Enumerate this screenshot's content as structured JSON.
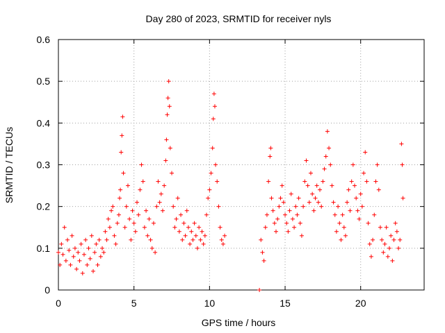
{
  "chart_data": {
    "type": "scatter",
    "title": "Day 280 of 2023, SRMTID for receiver nyls",
    "xlabel": "GPS time / hours",
    "ylabel": "SRMTID / TECUs",
    "xlim": [
      0,
      24.2
    ],
    "ylim": [
      0,
      0.6
    ],
    "xticks": [
      0,
      5,
      10,
      15,
      20
    ],
    "yticks": [
      0,
      0.1,
      0.2,
      0.3,
      0.4,
      0.5,
      0.6
    ],
    "xtick_labels": [
      "0",
      "5",
      "10",
      "15",
      "20"
    ],
    "ytick_labels": [
      "0",
      "0.1",
      "0.2",
      "0.3",
      "0.4",
      "0.5",
      "0.6"
    ],
    "grid": true,
    "marker": "+",
    "color": "#ff0000",
    "series": [
      {
        "name": "SRMTID",
        "points": [
          [
            0.0,
            0.09
          ],
          [
            0.1,
            0.06
          ],
          [
            0.2,
            0.11
          ],
          [
            0.3,
            0.085
          ],
          [
            0.4,
            0.15
          ],
          [
            0.5,
            0.07
          ],
          [
            0.6,
            0.12
          ],
          [
            0.7,
            0.095
          ],
          [
            0.8,
            0.06
          ],
          [
            0.9,
            0.13
          ],
          [
            1.0,
            0.08
          ],
          [
            1.1,
            0.1
          ],
          [
            1.2,
            0.05
          ],
          [
            1.3,
            0.09
          ],
          [
            1.4,
            0.07
          ],
          [
            1.5,
            0.11
          ],
          [
            1.6,
            0.04
          ],
          [
            1.7,
            0.085
          ],
          [
            1.8,
            0.12
          ],
          [
            1.9,
            0.06
          ],
          [
            2.0,
            0.1
          ],
          [
            2.1,
            0.075
          ],
          [
            2.2,
            0.13
          ],
          [
            2.3,
            0.045
          ],
          [
            2.4,
            0.09
          ],
          [
            2.5,
            0.11
          ],
          [
            2.6,
            0.06
          ],
          [
            2.7,
            0.12
          ],
          [
            2.8,
            0.08
          ],
          [
            2.9,
            0.1
          ],
          [
            3.0,
            0.09
          ],
          [
            3.1,
            0.14
          ],
          [
            3.2,
            0.12
          ],
          [
            3.3,
            0.17
          ],
          [
            3.4,
            0.15
          ],
          [
            3.5,
            0.19
          ],
          [
            3.6,
            0.2
          ],
          [
            3.7,
            0.13
          ],
          [
            3.8,
            0.11
          ],
          [
            3.9,
            0.16
          ],
          [
            4.0,
            0.18
          ],
          [
            4.05,
            0.22
          ],
          [
            4.1,
            0.24
          ],
          [
            4.15,
            0.33
          ],
          [
            4.2,
            0.37
          ],
          [
            4.25,
            0.415
          ],
          [
            4.3,
            0.28
          ],
          [
            4.4,
            0.15
          ],
          [
            4.5,
            0.2
          ],
          [
            4.6,
            0.25
          ],
          [
            4.7,
            0.17
          ],
          [
            4.8,
            0.12
          ],
          [
            4.9,
            0.19
          ],
          [
            5.0,
            0.16
          ],
          [
            5.1,
            0.14
          ],
          [
            5.2,
            0.21
          ],
          [
            5.3,
            0.18
          ],
          [
            5.4,
            0.24
          ],
          [
            5.5,
            0.3
          ],
          [
            5.6,
            0.26
          ],
          [
            5.7,
            0.15
          ],
          [
            5.8,
            0.19
          ],
          [
            5.9,
            0.13
          ],
          [
            6.0,
            0.17
          ],
          [
            6.1,
            0.12
          ],
          [
            6.2,
            0.1
          ],
          [
            6.3,
            0.16
          ],
          [
            6.4,
            0.09
          ],
          [
            6.5,
            0.2
          ],
          [
            6.6,
            0.26
          ],
          [
            6.7,
            0.21
          ],
          [
            6.8,
            0.23
          ],
          [
            6.9,
            0.19
          ],
          [
            7.0,
            0.25
          ],
          [
            7.1,
            0.31
          ],
          [
            7.15,
            0.36
          ],
          [
            7.2,
            0.42
          ],
          [
            7.25,
            0.46
          ],
          [
            7.3,
            0.5
          ],
          [
            7.35,
            0.44
          ],
          [
            7.4,
            0.34
          ],
          [
            7.5,
            0.28
          ],
          [
            7.6,
            0.2
          ],
          [
            7.7,
            0.15
          ],
          [
            7.8,
            0.17
          ],
          [
            7.9,
            0.22
          ],
          [
            8.0,
            0.14
          ],
          [
            8.1,
            0.18
          ],
          [
            8.2,
            0.12
          ],
          [
            8.3,
            0.16
          ],
          [
            8.4,
            0.13
          ],
          [
            8.5,
            0.19
          ],
          [
            8.6,
            0.15
          ],
          [
            8.7,
            0.11
          ],
          [
            8.8,
            0.14
          ],
          [
            8.9,
            0.12
          ],
          [
            9.0,
            0.16
          ],
          [
            9.1,
            0.13
          ],
          [
            9.2,
            0.1
          ],
          [
            9.3,
            0.15
          ],
          [
            9.4,
            0.12
          ],
          [
            9.5,
            0.14
          ],
          [
            9.6,
            0.11
          ],
          [
            9.7,
            0.13
          ],
          [
            9.8,
            0.18
          ],
          [
            9.9,
            0.22
          ],
          [
            10.0,
            0.24
          ],
          [
            10.1,
            0.28
          ],
          [
            10.2,
            0.34
          ],
          [
            10.25,
            0.41
          ],
          [
            10.3,
            0.47
          ],
          [
            10.35,
            0.44
          ],
          [
            10.4,
            0.3
          ],
          [
            10.5,
            0.26
          ],
          [
            10.6,
            0.2
          ],
          [
            10.7,
            0.15
          ],
          [
            10.8,
            0.12
          ],
          [
            10.9,
            0.11
          ],
          [
            11.0,
            0.13
          ],
          [
            13.3,
            0.0
          ],
          [
            13.4,
            0.12
          ],
          [
            13.5,
            0.09
          ],
          [
            13.6,
            0.07
          ],
          [
            13.7,
            0.15
          ],
          [
            13.8,
            0.18
          ],
          [
            13.9,
            0.26
          ],
          [
            14.0,
            0.32
          ],
          [
            14.05,
            0.34
          ],
          [
            14.1,
            0.22
          ],
          [
            14.2,
            0.19
          ],
          [
            14.3,
            0.16
          ],
          [
            14.4,
            0.14
          ],
          [
            14.5,
            0.17
          ],
          [
            14.6,
            0.2
          ],
          [
            14.7,
            0.22
          ],
          [
            14.8,
            0.25
          ],
          [
            14.9,
            0.21
          ],
          [
            15.0,
            0.18
          ],
          [
            15.1,
            0.16
          ],
          [
            15.2,
            0.14
          ],
          [
            15.3,
            0.19
          ],
          [
            15.4,
            0.23
          ],
          [
            15.5,
            0.17
          ],
          [
            15.6,
            0.15
          ],
          [
            15.7,
            0.2
          ],
          [
            15.8,
            0.18
          ],
          [
            15.9,
            0.22
          ],
          [
            16.0,
            0.16
          ],
          [
            16.1,
            0.13
          ],
          [
            16.2,
            0.2
          ],
          [
            16.3,
            0.26
          ],
          [
            16.4,
            0.31
          ],
          [
            16.5,
            0.25
          ],
          [
            16.6,
            0.21
          ],
          [
            16.7,
            0.28
          ],
          [
            16.8,
            0.23
          ],
          [
            16.9,
            0.19
          ],
          [
            17.0,
            0.22
          ],
          [
            17.1,
            0.25
          ],
          [
            17.2,
            0.21
          ],
          [
            17.3,
            0.24
          ],
          [
            17.4,
            0.2
          ],
          [
            17.5,
            0.26
          ],
          [
            17.6,
            0.29
          ],
          [
            17.7,
            0.32
          ],
          [
            17.8,
            0.38
          ],
          [
            17.9,
            0.34
          ],
          [
            18.0,
            0.3
          ],
          [
            18.1,
            0.25
          ],
          [
            18.2,
            0.21
          ],
          [
            18.3,
            0.18
          ],
          [
            18.4,
            0.14
          ],
          [
            18.5,
            0.2
          ],
          [
            18.6,
            0.16
          ],
          [
            18.7,
            0.12
          ],
          [
            18.8,
            0.18
          ],
          [
            18.9,
            0.15
          ],
          [
            19.0,
            0.13
          ],
          [
            19.1,
            0.21
          ],
          [
            19.2,
            0.24
          ],
          [
            19.3,
            0.19
          ],
          [
            19.4,
            0.26
          ],
          [
            19.5,
            0.3
          ],
          [
            19.6,
            0.25
          ],
          [
            19.7,
            0.22
          ],
          [
            19.8,
            0.19
          ],
          [
            19.9,
            0.17
          ],
          [
            20.0,
            0.23
          ],
          [
            20.1,
            0.2
          ],
          [
            20.2,
            0.28
          ],
          [
            20.3,
            0.33
          ],
          [
            20.4,
            0.26
          ],
          [
            20.5,
            0.16
          ],
          [
            20.6,
            0.11
          ],
          [
            20.7,
            0.08
          ],
          [
            20.8,
            0.12
          ],
          [
            20.9,
            0.18
          ],
          [
            21.0,
            0.26
          ],
          [
            21.1,
            0.3
          ],
          [
            21.2,
            0.24
          ],
          [
            21.3,
            0.15
          ],
          [
            21.4,
            0.12
          ],
          [
            21.5,
            0.09
          ],
          [
            21.6,
            0.11
          ],
          [
            21.7,
            0.15
          ],
          [
            21.8,
            0.08
          ],
          [
            21.9,
            0.1
          ],
          [
            22.0,
            0.13
          ],
          [
            22.1,
            0.07
          ],
          [
            22.2,
            0.12
          ],
          [
            22.3,
            0.16
          ],
          [
            22.4,
            0.14
          ],
          [
            22.5,
            0.1
          ],
          [
            22.6,
            0.12
          ],
          [
            22.7,
            0.35
          ],
          [
            22.75,
            0.3
          ],
          [
            22.8,
            0.22
          ]
        ]
      }
    ]
  }
}
